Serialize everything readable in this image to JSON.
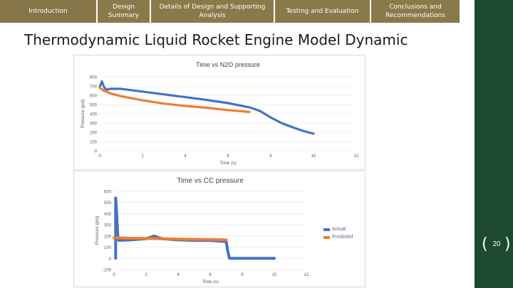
{
  "nav": {
    "tabs": [
      {
        "label": "Introduction"
      },
      {
        "label": "Design Summary"
      },
      {
        "label": "Details of Design and Supporting Analysis"
      },
      {
        "label": "Testing and Evaluation"
      },
      {
        "label": "Conclusions and Recommendations"
      }
    ]
  },
  "slide": {
    "title": "Thermodynamic Liquid Rocket Engine Model Dynamic",
    "page_number": "20"
  },
  "colors": {
    "nav_tab": "#8a7a4a",
    "right_band": "#1d4a2f",
    "actual": "#4472c4",
    "predicted": "#ed7d31"
  },
  "chart_data": [
    {
      "type": "line",
      "title": "Time vs N2O pressure",
      "xlabel": "Time (s)",
      "ylabel": "Pressure (psi)",
      "xlim": [
        0,
        12
      ],
      "ylim": [
        0,
        800
      ],
      "xticks": [
        "0",
        "2",
        "4",
        "6",
        "8",
        "10",
        "12"
      ],
      "yticks": [
        "0",
        "100",
        "200",
        "300",
        "400",
        "500",
        "600",
        "700",
        "800"
      ],
      "series": [
        {
          "color": "#4472c4",
          "x": [
            0,
            0.1,
            0.2,
            0.3,
            0.5,
            1,
            2,
            3,
            4,
            5,
            6,
            7,
            7.5,
            8,
            8.5,
            9,
            9.5,
            10
          ],
          "y": [
            690,
            750,
            690,
            660,
            670,
            670,
            640,
            610,
            580,
            550,
            515,
            470,
            430,
            360,
            300,
            255,
            215,
            185
          ]
        },
        {
          "color": "#ed7d31",
          "x": [
            0,
            0.2,
            0.5,
            1,
            2,
            3,
            4,
            5,
            6,
            7
          ],
          "y": [
            680,
            650,
            620,
            590,
            545,
            510,
            485,
            465,
            440,
            420
          ]
        }
      ]
    },
    {
      "type": "scatter",
      "title": "Time vs CC pressure",
      "xlabel": "Time (s)",
      "ylabel": "Pressure (psi)",
      "xlim": [
        0,
        12
      ],
      "ylim": [
        -100,
        600
      ],
      "xticks": [
        "0",
        "2",
        "4",
        "6",
        "8",
        "10",
        "12"
      ],
      "yticks": [
        "-100",
        "0",
        "100",
        "200",
        "300",
        "400",
        "500",
        "600"
      ],
      "legend": [
        "Actual",
        "Predicted"
      ],
      "legend_position": "right",
      "series": [
        {
          "name": "Actual",
          "color": "#4472c4",
          "x": [
            0.1,
            0.1,
            0.15,
            0.2,
            0.25,
            0.3,
            1,
            2,
            2.5,
            3,
            4,
            5,
            6,
            6.5,
            7,
            7.1,
            7.2,
            7.5,
            8,
            9,
            10
          ],
          "y": [
            0,
            540,
            450,
            300,
            180,
            160,
            165,
            175,
            200,
            175,
            165,
            160,
            160,
            155,
            150,
            60,
            0,
            0,
            0,
            0,
            0
          ]
        },
        {
          "name": "Predicted",
          "color": "#ed7d31",
          "x": [
            0,
            1,
            2,
            3,
            4,
            5,
            6,
            7
          ],
          "y": [
            185,
            180,
            178,
            175,
            172,
            170,
            168,
            165
          ]
        }
      ]
    }
  ]
}
